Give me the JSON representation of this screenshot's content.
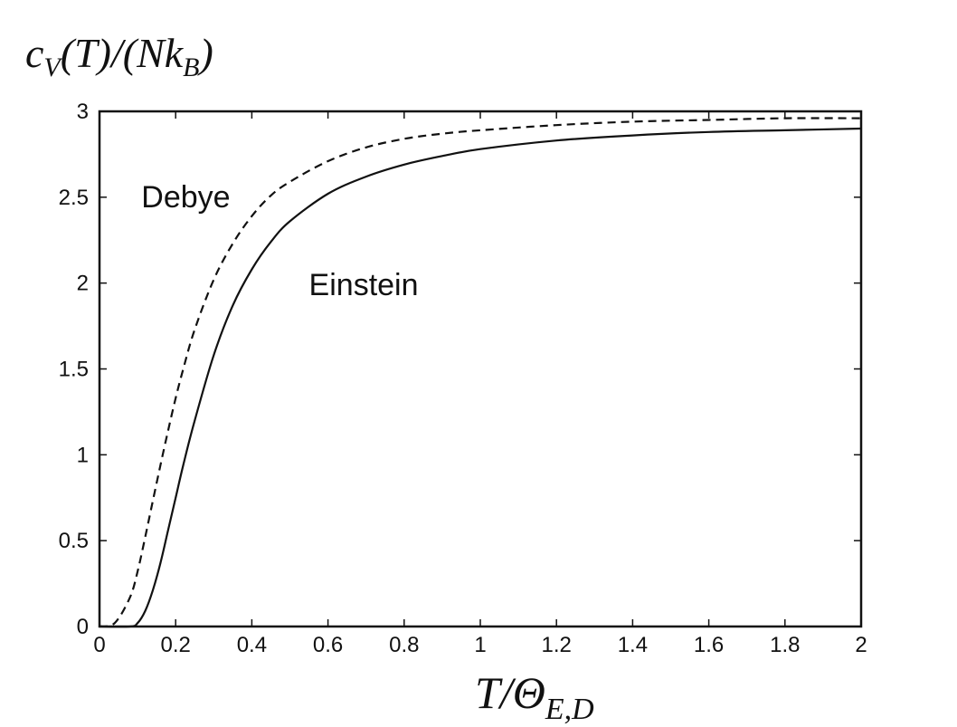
{
  "chart_data": {
    "type": "line",
    "ylabel_parts": {
      "base": "c",
      "sub": "V",
      "rest": "(T)/(Nk",
      "sub2": "B",
      "close": ")"
    },
    "xlabel_parts": {
      "base": "T/Θ",
      "sub": "E,D"
    },
    "xlim": [
      0,
      2
    ],
    "ylim": [
      0,
      3
    ],
    "x_ticks": [
      "0",
      "0.2",
      "0.4",
      "0.6",
      "0.8",
      "1",
      "1.2",
      "1.4",
      "1.6",
      "1.8",
      "2"
    ],
    "y_ticks": [
      "0",
      "0.5",
      "1",
      "1.5",
      "2",
      "2.5",
      "3"
    ],
    "grid": false,
    "series": [
      {
        "name": "Debye",
        "style": "dashed",
        "color": "#111111",
        "x": [
          0.0,
          0.04,
          0.08,
          0.1,
          0.12,
          0.14,
          0.16,
          0.18,
          0.2,
          0.22,
          0.25,
          0.3,
          0.35,
          0.4,
          0.45,
          0.5,
          0.6,
          0.7,
          0.8,
          0.9,
          1.0,
          1.2,
          1.4,
          1.6,
          1.8,
          2.0
        ],
        "y": [
          0.0,
          0.02,
          0.17,
          0.32,
          0.52,
          0.73,
          0.94,
          1.14,
          1.33,
          1.5,
          1.73,
          2.02,
          2.23,
          2.39,
          2.51,
          2.59,
          2.71,
          2.79,
          2.84,
          2.87,
          2.89,
          2.92,
          2.94,
          2.95,
          2.96,
          2.96
        ]
      },
      {
        "name": "Einstein",
        "style": "solid",
        "color": "#111111",
        "x": [
          0.0,
          0.08,
          0.1,
          0.12,
          0.14,
          0.16,
          0.18,
          0.2,
          0.22,
          0.25,
          0.3,
          0.35,
          0.4,
          0.45,
          0.5,
          0.6,
          0.7,
          0.8,
          0.9,
          1.0,
          1.2,
          1.4,
          1.6,
          1.8,
          2.0
        ],
        "y": [
          0.0,
          0.0,
          0.02,
          0.09,
          0.21,
          0.37,
          0.56,
          0.75,
          0.94,
          1.2,
          1.58,
          1.87,
          2.08,
          2.24,
          2.36,
          2.52,
          2.62,
          2.69,
          2.74,
          2.78,
          2.83,
          2.86,
          2.88,
          2.89,
          2.9
        ]
      }
    ],
    "annotations": [
      {
        "text": "Debye",
        "series": "Debye",
        "x": 0.11,
        "y": 2.44
      },
      {
        "text": "Einstein",
        "series": "Einstein",
        "x": 0.55,
        "y": 1.93
      }
    ]
  }
}
